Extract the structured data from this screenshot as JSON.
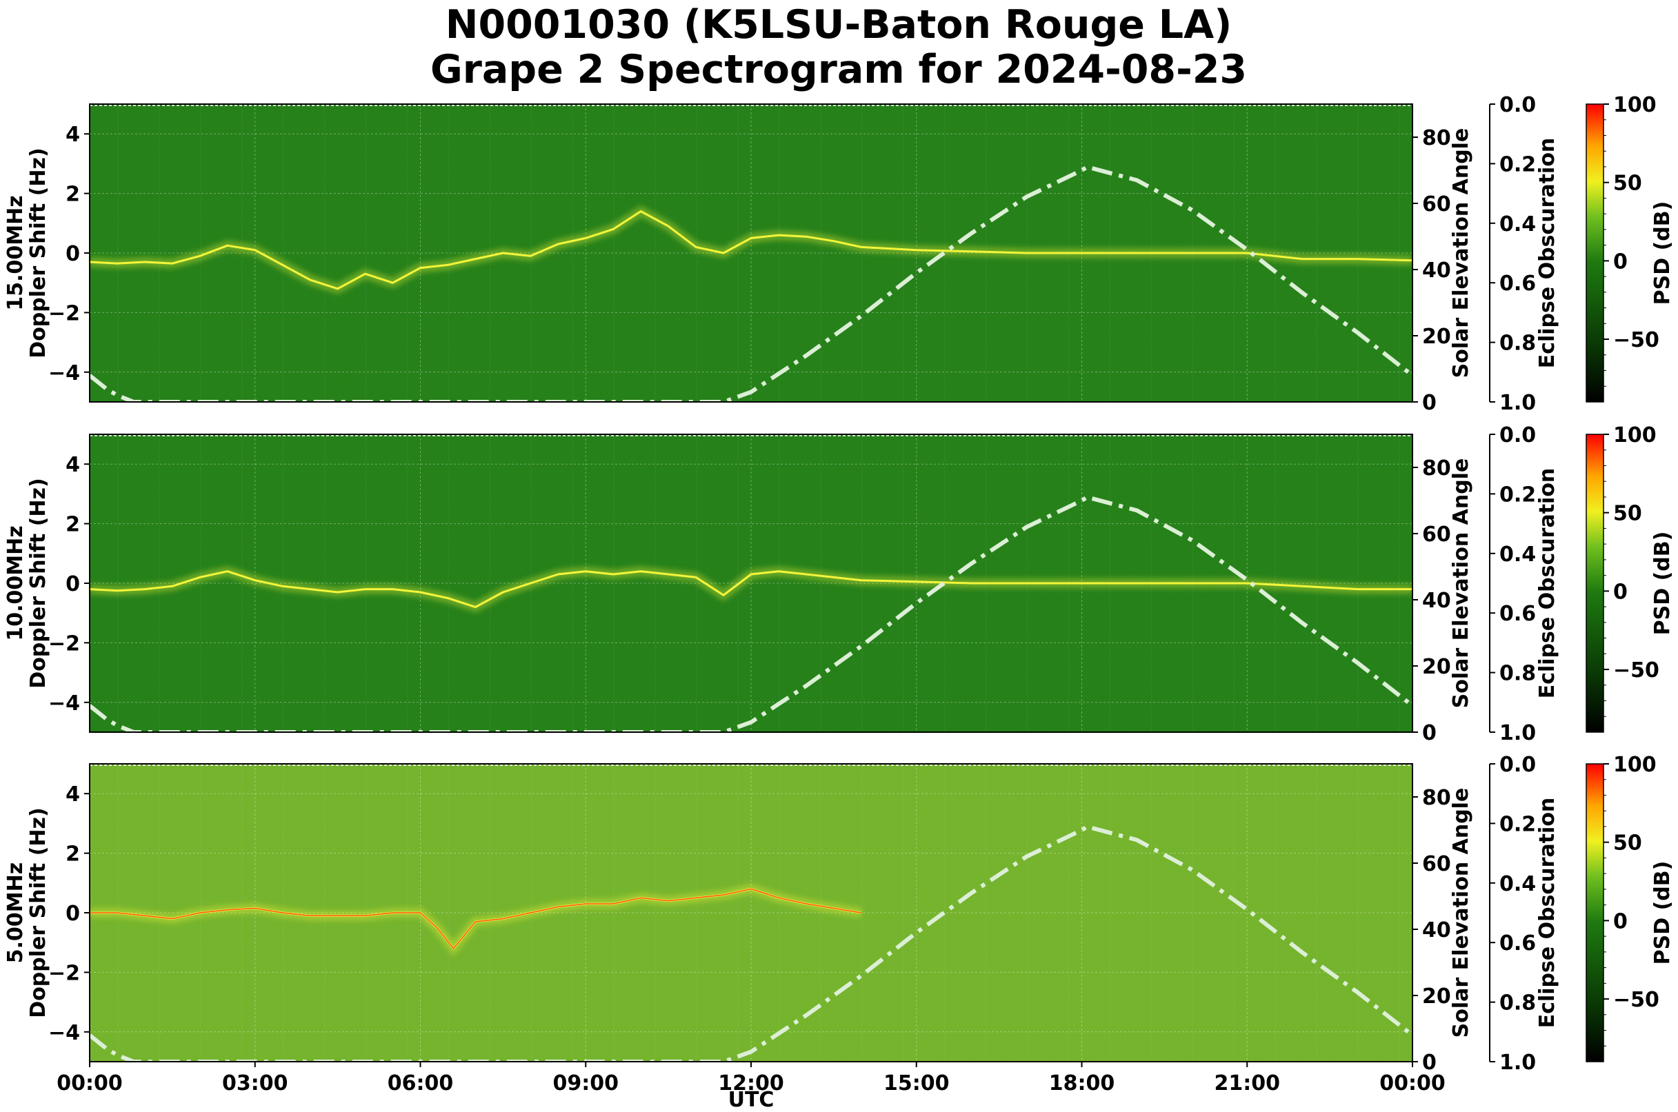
{
  "title_lines": [
    "N0001030 (K5LSU-Baton Rouge LA)",
    "Grape 2 Spectrogram for 2024-08-23"
  ],
  "x_axis": {
    "label": "UTC",
    "ticks": [
      "00:00",
      "03:00",
      "06:00",
      "09:00",
      "12:00",
      "15:00",
      "18:00",
      "21:00",
      "00:00"
    ]
  },
  "colors": {
    "background_high_band": "#1f7a12",
    "background_low_band": "#74b22a",
    "trace_bright": "#f3f53a",
    "trace_red": "#ff2a10",
    "solar_curve": "#dcefd6"
  },
  "chart_data": [
    {
      "type": "heatmap",
      "frequency_label": "15.00MHz",
      "ylabel": "Doppler Shift (Hz)",
      "ylim": [
        -5,
        5
      ],
      "yticks": [
        4,
        2,
        0,
        -2,
        -4
      ],
      "secondary_ylabel": "Solar Elevation Angle",
      "secondary_ylim": [
        0,
        90
      ],
      "secondary_yticks": [
        80,
        60,
        40,
        20,
        0
      ],
      "eclipse_label": "Eclipse Obscuration",
      "eclipse_ticks": [
        "0.0",
        "0.2",
        "0.4",
        "0.6",
        "0.8",
        "1.0"
      ],
      "colorbar_label": "PSD (dB)",
      "colorbar_ticks": [
        "100",
        "50",
        "0",
        "−50"
      ],
      "colorbar_range": [
        -90,
        100
      ],
      "xlim_hours": [
        0,
        24
      ],
      "doppler_trace": {
        "x_hours": [
          0,
          0.5,
          1,
          1.5,
          2,
          2.5,
          3,
          3.5,
          4,
          4.5,
          5,
          5.5,
          6,
          6.5,
          7,
          7.5,
          8,
          8.5,
          9,
          9.5,
          10,
          10.5,
          11,
          11.5,
          12,
          12.5,
          13,
          13.5,
          14,
          15,
          16,
          17,
          18,
          19,
          20,
          21,
          22,
          23,
          24
        ],
        "y_hz": [
          -0.3,
          -0.35,
          -0.3,
          -0.35,
          -0.1,
          0.25,
          0.1,
          -0.4,
          -0.9,
          -1.2,
          -0.7,
          -1.0,
          -0.5,
          -0.4,
          -0.2,
          0.0,
          -0.1,
          0.3,
          0.5,
          0.8,
          1.4,
          0.9,
          0.2,
          0.0,
          0.5,
          0.6,
          0.55,
          0.4,
          0.2,
          0.1,
          0.05,
          0.0,
          0.0,
          0.0,
          0.0,
          0.0,
          -0.2,
          -0.2,
          -0.25
        ]
      },
      "solar_elevation": {
        "x_hours": [
          0,
          0.3,
          0.5,
          0.8,
          11.5,
          12,
          13,
          14,
          15,
          16,
          17,
          18,
          18.1,
          19,
          20,
          21,
          22,
          23,
          24
        ],
        "deg": [
          8,
          4,
          2,
          0,
          0,
          3,
          14,
          26,
          39,
          51,
          62,
          70,
          71,
          67,
          58,
          46,
          33,
          21,
          8
        ]
      }
    },
    {
      "type": "heatmap",
      "frequency_label": "10.00MHz",
      "ylabel": "Doppler Shift (Hz)",
      "ylim": [
        -5,
        5
      ],
      "yticks": [
        4,
        2,
        0,
        -2,
        -4
      ],
      "secondary_ylabel": "Solar Elevation Angle",
      "secondary_ylim": [
        0,
        90
      ],
      "secondary_yticks": [
        80,
        60,
        40,
        20,
        0
      ],
      "eclipse_label": "Eclipse Obscuration",
      "eclipse_ticks": [
        "0.0",
        "0.2",
        "0.4",
        "0.6",
        "0.8",
        "1.0"
      ],
      "colorbar_label": "PSD (dB)",
      "colorbar_ticks": [
        "100",
        "50",
        "0",
        "−50"
      ],
      "colorbar_range": [
        -90,
        100
      ],
      "xlim_hours": [
        0,
        24
      ],
      "doppler_trace": {
        "x_hours": [
          0,
          0.5,
          1,
          1.5,
          2,
          2.5,
          3,
          3.5,
          4,
          4.5,
          5,
          5.5,
          6,
          6.5,
          7,
          7.5,
          8,
          8.5,
          9,
          9.5,
          10,
          10.5,
          11,
          11.5,
          12,
          12.5,
          13,
          13.5,
          14,
          15,
          16,
          17,
          18,
          19,
          20,
          21,
          22,
          23,
          24
        ],
        "y_hz": [
          -0.2,
          -0.25,
          -0.2,
          -0.1,
          0.2,
          0.4,
          0.1,
          -0.1,
          -0.2,
          -0.3,
          -0.2,
          -0.2,
          -0.3,
          -0.5,
          -0.8,
          -0.3,
          0.0,
          0.3,
          0.4,
          0.3,
          0.4,
          0.3,
          0.2,
          -0.4,
          0.3,
          0.4,
          0.3,
          0.2,
          0.1,
          0.05,
          0.0,
          0.0,
          0.0,
          0.0,
          0.0,
          0.0,
          -0.1,
          -0.2,
          -0.2
        ]
      },
      "solar_elevation": {
        "x_hours": [
          0,
          0.3,
          0.5,
          0.8,
          11.5,
          12,
          13,
          14,
          15,
          16,
          17,
          18,
          18.1,
          19,
          20,
          21,
          22,
          23,
          24
        ],
        "deg": [
          8,
          4,
          2,
          0,
          0,
          3,
          14,
          26,
          39,
          51,
          62,
          70,
          71,
          67,
          58,
          46,
          33,
          21,
          8
        ]
      }
    },
    {
      "type": "heatmap",
      "frequency_label": "5.00MHz",
      "ylabel": "Doppler Shift (Hz)",
      "ylim": [
        -5,
        5
      ],
      "yticks": [
        4,
        2,
        0,
        -2,
        -4
      ],
      "secondary_ylabel": "Solar Elevation Angle",
      "secondary_ylim": [
        0,
        90
      ],
      "secondary_yticks": [
        80,
        60,
        40,
        20,
        0
      ],
      "eclipse_label": "Eclipse Obscuration",
      "eclipse_ticks": [
        "0.0",
        "0.2",
        "0.4",
        "0.6",
        "0.8",
        "1.0"
      ],
      "colorbar_label": "PSD (dB)",
      "colorbar_ticks": [
        "100",
        "50",
        "0",
        "−50"
      ],
      "colorbar_range": [
        -90,
        100
      ],
      "xlim_hours": [
        0,
        24
      ],
      "doppler_trace": {
        "x_hours": [
          0,
          0.5,
          1,
          1.5,
          2,
          2.5,
          3,
          3.5,
          4,
          4.5,
          5,
          5.5,
          6,
          6.3,
          6.6,
          7,
          7.5,
          8,
          8.5,
          9,
          9.5,
          10,
          10.5,
          11,
          11.5,
          12,
          12.5,
          13,
          14
        ],
        "y_hz": [
          0.0,
          0.0,
          -0.1,
          -0.2,
          0.0,
          0.1,
          0.15,
          0.0,
          -0.1,
          -0.1,
          -0.1,
          0.0,
          0.0,
          -0.5,
          -1.2,
          -0.3,
          -0.2,
          0.0,
          0.2,
          0.3,
          0.3,
          0.5,
          0.4,
          0.5,
          0.6,
          0.8,
          0.5,
          0.3,
          0.0
        ]
      },
      "solar_elevation": {
        "x_hours": [
          0,
          0.3,
          0.5,
          0.8,
          11.5,
          12,
          13,
          14,
          15,
          16,
          17,
          18,
          18.1,
          19,
          20,
          21,
          22,
          23,
          24
        ],
        "deg": [
          8,
          4,
          2,
          0,
          0,
          3,
          14,
          26,
          39,
          51,
          62,
          70,
          71,
          67,
          58,
          46,
          33,
          21,
          8
        ]
      }
    }
  ]
}
